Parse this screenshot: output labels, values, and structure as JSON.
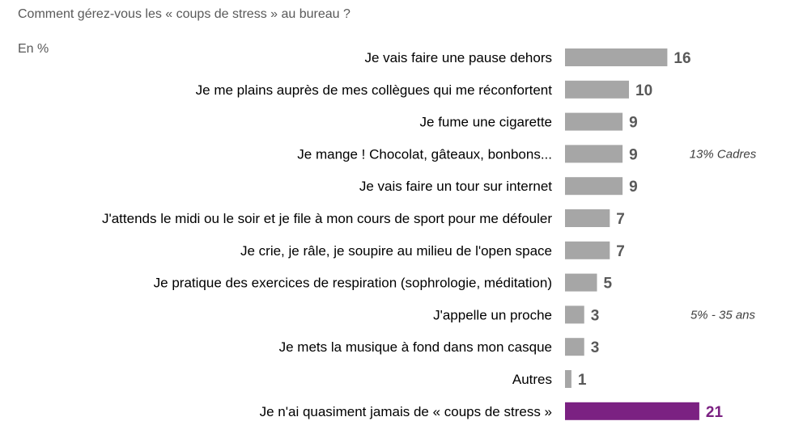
{
  "chart_data": {
    "type": "bar",
    "orientation": "horizontal",
    "title": "Comment gérez-vous les « coups de stress » au bureau ?",
    "subtitle": "En %",
    "categories": [
      "Je vais faire une pause dehors",
      "Je me plains auprès de mes collègues qui me réconfortent",
      "Je fume une cigarette",
      "Je mange ! Chocolat, gâteaux, bonbons...",
      "Je vais faire un tour sur internet",
      "J'attends le midi ou le soir et je file à mon cours de sport pour me défouler",
      "Je crie, je râle, je soupire au milieu de l'open space",
      "Je pratique des exercices de respiration (sophrologie, méditation)",
      "J'appelle un proche",
      "Je mets la musique à fond dans mon casque",
      "Autres",
      "Je n'ai quasiment jamais de « coups de stress »"
    ],
    "values": [
      16,
      10,
      9,
      9,
      9,
      7,
      7,
      5,
      3,
      3,
      1,
      21
    ],
    "value_labels": [
      "16",
      "10",
      "9",
      "9",
      "9",
      "7",
      "7",
      "5",
      "3",
      "3",
      "1",
      "21"
    ],
    "bar_colors": [
      "#a6a6a6",
      "#a6a6a6",
      "#a6a6a6",
      "#a6a6a6",
      "#a6a6a6",
      "#a6a6a6",
      "#a6a6a6",
      "#a6a6a6",
      "#a6a6a6",
      "#a6a6a6",
      "#a6a6a6",
      "#7b2182"
    ],
    "label_colors": [
      "#595959",
      "#595959",
      "#595959",
      "#595959",
      "#595959",
      "#595959",
      "#595959",
      "#595959",
      "#595959",
      "#595959",
      "#595959",
      "#7b2182"
    ],
    "annotations": [
      {
        "category_index": 3,
        "text": "13% Cadres"
      },
      {
        "category_index": 8,
        "text": "5% - 35 ans"
      }
    ],
    "xlim": [
      0,
      21
    ],
    "grid": false,
    "legend": "none"
  }
}
